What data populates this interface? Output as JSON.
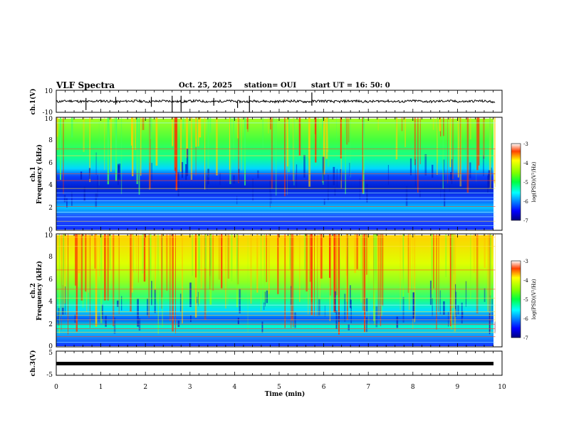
{
  "header": {
    "title": "VLF Spectra",
    "date": "Oct. 25, 2025",
    "station": "station= OUI",
    "start": "start  UT =   16: 50: 0"
  },
  "chart_data": [
    {
      "type": "line",
      "name": "ch1-waveform",
      "ylabel": "ch.1(V)",
      "ylim": [
        -10,
        10
      ],
      "yticks": [
        "10",
        "-10"
      ],
      "xlim": [
        0,
        10
      ]
    },
    {
      "type": "heatmap",
      "name": "ch1-spectrogram",
      "ylabel_line1": "ch.1",
      "ylabel_line2": "Frequency  (kHz)",
      "ylim": [
        0,
        10
      ],
      "yticks": [
        "0",
        "2",
        "4",
        "6",
        "8",
        "10"
      ],
      "xlim": [
        0,
        10
      ],
      "colorbar": {
        "label": "log(PSD)(V²/Hz)",
        "range": [
          -7,
          -3
        ],
        "ticks": [
          "-3",
          "-4",
          "-5",
          "-6",
          "-7"
        ]
      }
    },
    {
      "type": "heatmap",
      "name": "ch2-spectrogram",
      "ylabel_line1": "ch.2",
      "ylabel_line2": "Frequency  (kHz)",
      "ylim": [
        0,
        10
      ],
      "yticks": [
        "0",
        "2",
        "4",
        "6",
        "8",
        "10"
      ],
      "xlim": [
        0,
        10
      ],
      "colorbar": {
        "label": "log(PSD)(V²/Hz)",
        "range": [
          -7,
          -3
        ],
        "ticks": [
          "-3",
          "-4",
          "-5",
          "-6",
          "-7"
        ]
      }
    },
    {
      "type": "line",
      "name": "ch3-waveform",
      "ylabel": "ch.3(V)",
      "ylim": [
        -5,
        5
      ],
      "yticks": [
        "5",
        "-5"
      ],
      "xlim": [
        0,
        10
      ]
    }
  ],
  "xaxis": {
    "label": "Time  (min)",
    "ticks": [
      "0",
      "1",
      "2",
      "3",
      "4",
      "5",
      "6",
      "7",
      "8",
      "9",
      "10"
    ],
    "data_end_min": 9.85
  },
  "colors": {
    "waveform": "#000000",
    "frame": "#000000"
  }
}
